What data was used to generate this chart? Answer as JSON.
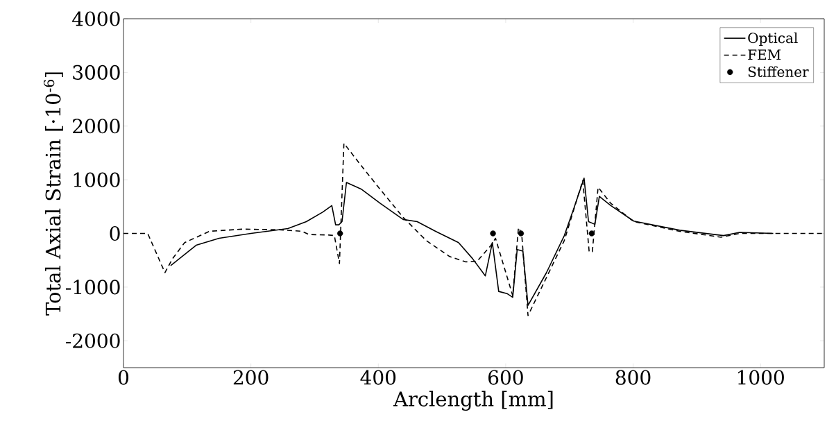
{
  "chart_data": {
    "type": "line",
    "xlabel": "Arclength [mm]",
    "ylabel": "Total Axial Strain [·10$^{-6}$]",
    "xlim": [
      0,
      1100
    ],
    "ylim": [
      -2500,
      4000
    ],
    "xticks": [
      0,
      200,
      400,
      600,
      800,
      1000
    ],
    "yticks": [
      -2000,
      -1000,
      0,
      1000,
      2000,
      3000,
      4000
    ],
    "grid": false,
    "legend": "top right",
    "series": [
      {
        "name": "Optical",
        "color": "#000000",
        "line_style": "solid",
        "marker": "none",
        "x": [
          74,
          114,
          150,
          200,
          258,
          287,
          313,
          327,
          333,
          338,
          343,
          350,
          374,
          403,
          439,
          461,
          490,
          526,
          548,
          568,
          579,
          589,
          602,
          611,
          618,
          627,
          635,
          664,
          692,
          707,
          723,
          730,
          740,
          747,
          765,
          801,
          873,
          942,
          967,
          1020
        ],
        "values": [
          -600,
          -220,
          -90,
          0,
          90,
          220,
          400,
          520,
          160,
          160,
          220,
          950,
          820,
          560,
          260,
          220,
          40,
          -170,
          -470,
          -790,
          -170,
          -1080,
          -1120,
          -1190,
          -300,
          -330,
          -1340,
          -730,
          -40,
          470,
          1030,
          220,
          170,
          690,
          520,
          230,
          60,
          -40,
          20,
          0
        ]
      },
      {
        "name": "FEM",
        "color": "#000000",
        "line_style": "dashed",
        "marker": "none",
        "x": [
          0,
          38,
          65,
          77,
          96,
          135,
          186,
          244,
          280,
          291,
          323,
          331,
          339,
          346,
          374,
          403,
          439,
          475,
          512,
          537,
          555,
          577,
          584,
          611,
          620,
          625,
          635,
          664,
          692,
          721,
          731,
          736,
          745,
          765,
          801,
          873,
          938,
          967,
          1100
        ],
        "values": [
          0,
          0,
          -730,
          -470,
          -170,
          40,
          80,
          70,
          40,
          -20,
          -30,
          -40,
          -560,
          1680,
          1250,
          820,
          300,
          -130,
          -430,
          -530,
          -520,
          -220,
          -90,
          -1160,
          110,
          0,
          -1530,
          -820,
          -130,
          990,
          -340,
          -340,
          860,
          560,
          220,
          40,
          -70,
          0,
          0
        ]
      },
      {
        "name": "Stiffener",
        "type": "scatter",
        "color": "#000000",
        "marker": "circle",
        "x": [
          340,
          580,
          624,
          735
        ],
        "values": [
          0,
          0,
          0,
          0
        ]
      }
    ]
  }
}
